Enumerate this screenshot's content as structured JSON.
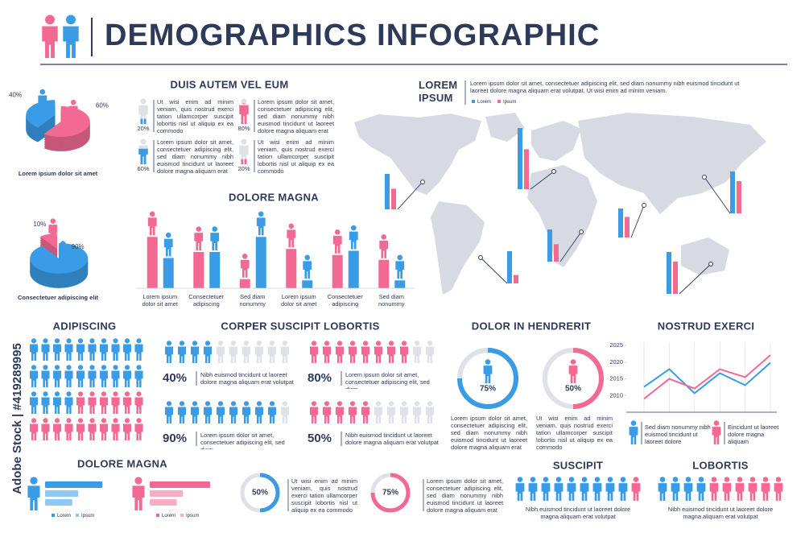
{
  "title": "DEMOGRAPHICS INFOGRAPHIC",
  "watermark": "Adobe Stock | #419289995",
  "chart_data": [
    {
      "type": "pie3d",
      "values": [
        40,
        60
      ],
      "value_labels": [
        "40%",
        "60%"
      ],
      "colors": [
        "#3a9be6",
        "#f26a93"
      ],
      "caption": "Lorem ipsum dolor sit amet"
    },
    {
      "type": "pie3d",
      "values": [
        10,
        90
      ],
      "value_labels": [
        "10%",
        "90%"
      ],
      "colors": [
        "#f26a93",
        "#3a9be6"
      ],
      "caption": "Consectetuer adipiscing elit"
    },
    {
      "type": "icon-fill",
      "title": "DUIS AUTEM VEL EUM",
      "items": [
        {
          "value": 20,
          "label": "20%",
          "color": "#3a9be6",
          "text": "Ut wisi enim ad minim veniam, quis nostrud exerci tation ullamcorper suscipit lobortis nisl ut aliquip ex ea commodo"
        },
        {
          "value": 80,
          "label": "80%",
          "color": "#f26a93",
          "text": "Lorem ipsum dolor sit amet, consectetuer adipiscing elit, sed diam nonummy nibh euismod tincidunt ut laoreet dolore magna aliquam erat"
        },
        {
          "value": 60,
          "label": "60%",
          "color": "#3a9be6",
          "text": "Lorem ipsum dolor sit amet, consectetuer adipiscing elit, sed diam nonummy nibh euismod tincidunt ut laoreet dolore magna aliquam erat"
        },
        {
          "value": 20,
          "label": "20%",
          "color": "#f26a93",
          "text": "Ut wisi enim ad minim veniam, quis nostrud exerci tation ullamcorper suscipit lobortis nisl ut aliquip ex ea commodo"
        }
      ]
    },
    {
      "type": "bar",
      "title": "DOLORE MAGNA",
      "categories": [
        "Lorem ipsum dolor sit amet",
        "Consectetuer adipiscing",
        "Sed diam nonummy",
        "Lorem ipsum dolor sit amet",
        "Consectetuer adipiscing",
        "Sed diam nonummy"
      ],
      "ylim": [
        0,
        100
      ],
      "series": [
        {
          "color": "#f26a93",
          "values": [
            85,
            60,
            15,
            65,
            55,
            47
          ]
        },
        {
          "color": "#3a9be6",
          "values": [
            50,
            60,
            85,
            13,
            62,
            13
          ]
        }
      ]
    },
    {
      "type": "map-bars",
      "title": "LOREM IPSUM",
      "text": "Lorem ipsum dolor sit amet, consectetuer adipiscing elit, sed diam nonummy nibh euismod tincidunt ut laoreet dolore magna aliquam erat volutpat. Ut wisi enim ad minim veniam.",
      "ylim": [
        0,
        100
      ],
      "series": [
        {
          "name": "Lorem",
          "color": "#3a9be6",
          "values": [
            55,
            95,
            50,
            50,
            45,
            65,
            65
          ]
        },
        {
          "name": "Ipsum",
          "color": "#f26a93",
          "values": [
            32,
            62,
            27,
            13,
            32,
            50,
            50
          ]
        }
      ]
    },
    {
      "type": "icon-rows",
      "title": "ADIPISCING",
      "series": [
        {
          "color": "#3a9be6",
          "values": [
            10,
            10,
            4,
            0
          ]
        },
        {
          "color": "#f26a93",
          "values": [
            0,
            0,
            6,
            10
          ]
        }
      ]
    },
    {
      "type": "icon-percent",
      "title": "CORPER SUSCIPIT LOBORTIS",
      "items": [
        {
          "value": 40,
          "label": "40%",
          "color": "#3a9be6",
          "text": "Nibh euismod tincidunt ut laoreet dolore magna aliquam erat volutpat"
        },
        {
          "value": 80,
          "label": "80%",
          "color": "#f26a93",
          "text": "Lorem ipsum dolor sit amet, consectetuer adipiscing elit, sed diam"
        },
        {
          "value": 90,
          "label": "90%",
          "color": "#3a9be6",
          "text": "Lorem ipsum dolor sit amet, consectetuer adipiscing elit, sed diam"
        },
        {
          "value": 50,
          "label": "50%",
          "color": "#f26a93",
          "text": "Nibh euismod tincidunt ut laoreet dolore magna aliquam erat volutpat"
        }
      ]
    },
    {
      "type": "donut",
      "title": "DOLOR IN HENDRERIT",
      "items": [
        {
          "value": 75,
          "label": "75%",
          "color": "#3a9be6",
          "text": "Lorem ipsum dolor sit amet, consectetuer adipiscing elit, sed diam nonummy nibh euismod tincidunt ut laoreet dolore magna aliquam erat"
        },
        {
          "value": 50,
          "label": "50%",
          "color": "#f26a93",
          "text": "Ut wisi enim ad minim veniam, quis nostrud exerci tation ullamcorper suscipit lobortis nisl ut aliquip ex ea commodo"
        }
      ]
    },
    {
      "type": "line",
      "title": "NOSTRUD EXERCI",
      "categories": [
        null,
        null,
        null,
        null,
        null,
        null
      ],
      "ylim": [
        2005,
        2026
      ],
      "yticks": [
        2010,
        2015,
        2020,
        2025
      ],
      "grid": true,
      "series": [
        {
          "color": "#3a9be6",
          "values": [
            2012.6,
            2017.9,
            2010.7,
            2016.7,
            2013.1,
            2019.8
          ]
        },
        {
          "color": "#f26a93",
          "values": [
            2009,
            2015,
            2012.1,
            2017.9,
            2015.5,
            2022.1
          ]
        }
      ],
      "notes": [
        {
          "color": "#3a9be6",
          "text": "Sed diam nonummy nibh euismod tincidunt ut laoreet dolore"
        },
        {
          "color": "#f26a93",
          "text": "Eincidunt ut laoreet dolore magna aliquam"
        }
      ]
    },
    {
      "type": "hbar",
      "title": "DOLORE MAGNA",
      "xlim": [
        0,
        100
      ],
      "groups": [
        {
          "figure": "#3a9be6",
          "bars": [
            {
              "color": "#3a9be6",
              "value": 95
            },
            {
              "color": "#8fc8f2",
              "value": 55
            },
            {
              "color": "#8fc8f2",
              "value": 45
            }
          ],
          "legend": [
            {
              "name": "Lorem",
              "color": "#3a9be6"
            },
            {
              "name": "Ipsum",
              "color": "#8fc8f2"
            }
          ]
        },
        {
          "figure": "#f26a93",
          "bars": [
            {
              "color": "#f26a93",
              "value": 100
            },
            {
              "color": "#f7aec4",
              "value": 55
            },
            {
              "color": "#f7aec4",
              "value": 45
            }
          ],
          "legend": [
            {
              "name": "Lorem",
              "color": "#f26a93"
            },
            {
              "name": "Ipsum",
              "color": "#f7aec4"
            }
          ]
        }
      ]
    },
    {
      "type": "donut-small",
      "items": [
        {
          "value": 50,
          "label": "50%",
          "color": "#3a9be6",
          "text": "Ut wisi enim ad minim veniam, quis nostrud exerci tation ullamcorper suscipit lobortis nisl ut aliquip ex ea commodo"
        },
        {
          "value": 75,
          "label": "75%",
          "color": "#f26a93",
          "text": "Lorem ipsum dolor sit amet, consectetuer adipiscing elit, sed diam nonummy nibh euismod tincidunt ut laoreet dolore magna aliquam erat"
        }
      ]
    },
    {
      "type": "icon-count",
      "title": "SUSCIPIT",
      "series": [
        {
          "color": "#3a9be6",
          "value": 9
        },
        {
          "color": "#f26a93",
          "value": 1
        }
      ],
      "text": "Nibh euismod tincidunt ut laoreet dolore magna aliquam erat volutpat"
    },
    {
      "type": "icon-count",
      "title": "LOBORTIS",
      "series": [
        {
          "color": "#3a9be6",
          "value": 4
        },
        {
          "color": "#f26a93",
          "value": 6
        }
      ],
      "text": "Nibh euismod tincidunt ut laoreet dolore magna aliquam erat volutpat"
    }
  ]
}
